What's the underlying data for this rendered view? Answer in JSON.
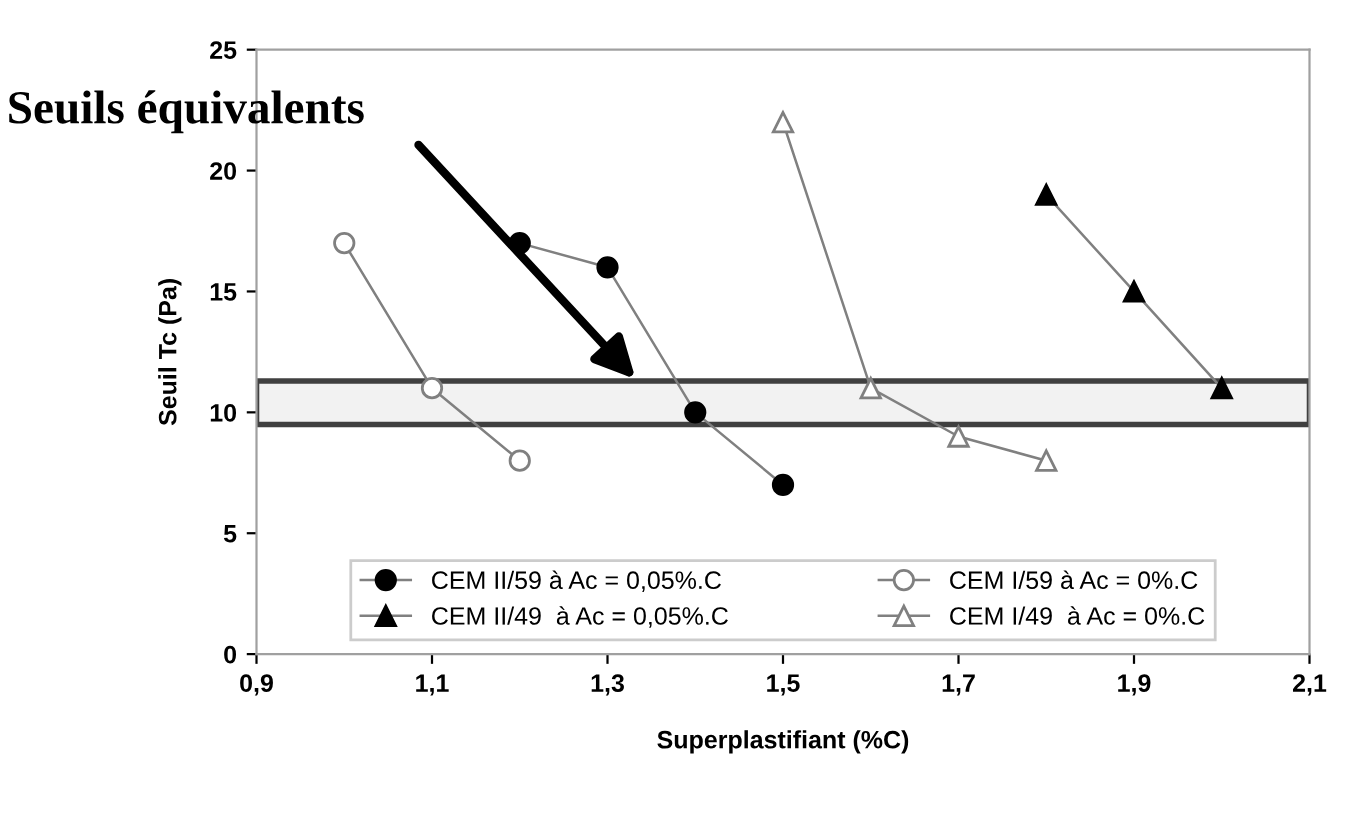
{
  "chart_data": {
    "type": "line",
    "xlabel": "Superplastifiant (%C)",
    "ylabel": "Seuil Tc (Pa)",
    "annotations": [
      "Seuils équivalents"
    ],
    "series": [
      {
        "name": "CEM II/59 à Ac = 0,05%.C",
        "color": "#000000",
        "marker": "circle",
        "x": [
          1.2,
          1.3,
          1.4,
          1.5
        ],
        "values": [
          17,
          16,
          10,
          7
        ]
      },
      {
        "name": "CEM I/59 à Ac = 0%.C",
        "color": "#808080",
        "marker": "circle",
        "x": [
          1.0,
          1.1,
          1.2
        ],
        "values": [
          17,
          11,
          8
        ]
      },
      {
        "name": "CEM II/49  à Ac = 0,05%.C",
        "color": "#000000",
        "marker": "triangle",
        "x": [
          1.8,
          1.9,
          2.0
        ],
        "values": [
          19,
          15,
          11
        ]
      },
      {
        "name": "CEM I/49  à Ac = 0%.C",
        "color": "#808080",
        "marker": "triangle",
        "x": [
          1.5,
          1.6,
          1.7,
          1.8
        ],
        "values": [
          22,
          11,
          9,
          8
        ]
      }
    ],
    "bands": [
      {
        "axis": "y",
        "from": 9.5,
        "to": 11.3,
        "color": "#404040"
      }
    ],
    "xlim": [
      0.9,
      2.1
    ],
    "xticks": [
      {
        "value": 0.9,
        "label": "0,9"
      },
      {
        "value": 1.1,
        "label": "1,1"
      },
      {
        "value": 1.3,
        "label": "1,3"
      },
      {
        "value": 1.5,
        "label": "1,5"
      },
      {
        "value": 1.7,
        "label": "1,7"
      },
      {
        "value": 1.9,
        "label": "1,9"
      },
      {
        "value": 2.1,
        "label": "2,1"
      }
    ],
    "ylim": [
      0,
      25
    ],
    "yticks": [
      0,
      5,
      10,
      15,
      20,
      25
    ],
    "grid": false,
    "legend": "bottom",
    "line_style": "solid"
  }
}
